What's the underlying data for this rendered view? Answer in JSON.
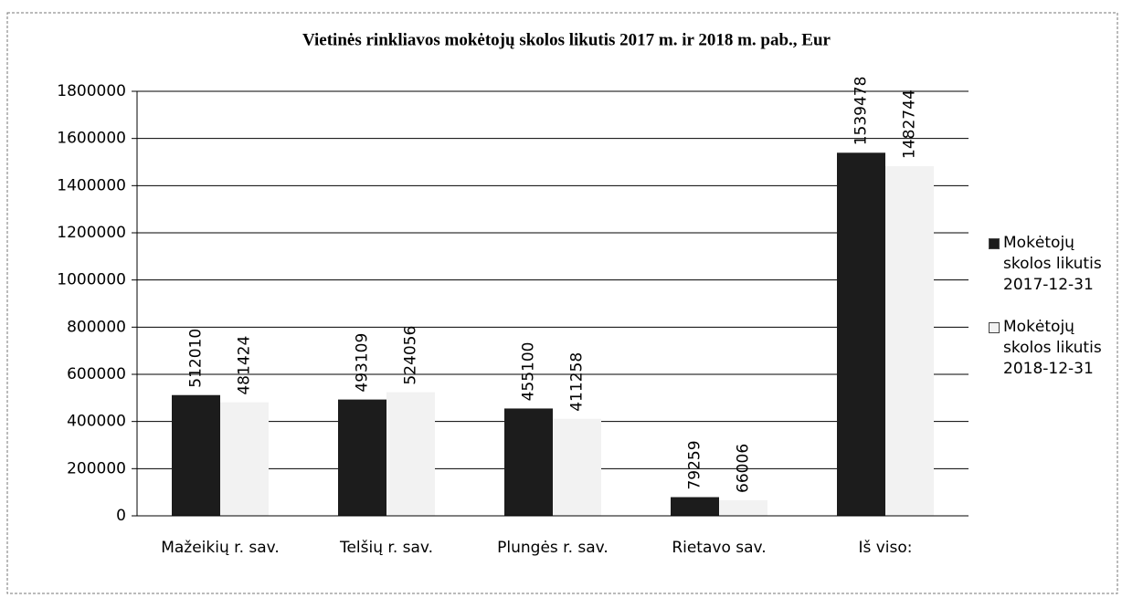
{
  "chart_data": {
    "type": "bar",
    "title": "Vietinės rinkliavos mokėtojų skolos likutis  2017 m. ir 2018 m. pab., Eur",
    "categories": [
      "Mažeikių r. sav.",
      "Telšių r. sav.",
      "Plungės r. sav.",
      "Rietavo sav.",
      "Iš viso:"
    ],
    "series": [
      {
        "name": "Mokėtojų skolos likutis 2017-12-31",
        "color": "#1c1c1c",
        "values": [
          512010,
          493109,
          455100,
          79259,
          1539478
        ]
      },
      {
        "name": "Mokėtojų skolos likutis 2018-12-31",
        "color": "#f2f2f2",
        "values": [
          481424,
          524056,
          411258,
          66006,
          1482744
        ]
      }
    ],
    "ylim": [
      0,
      1800000
    ],
    "yticks": [
      0,
      200000,
      400000,
      600000,
      800000,
      1000000,
      1200000,
      1400000,
      1600000,
      1800000
    ],
    "grid": true,
    "legend": "right"
  }
}
